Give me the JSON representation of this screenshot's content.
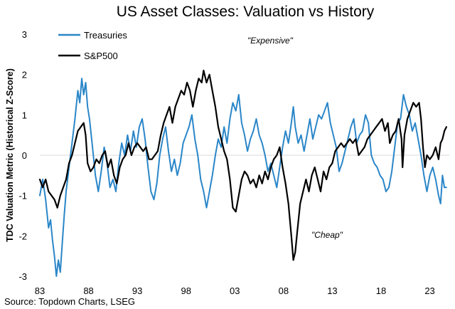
{
  "chart_data": {
    "type": "line",
    "title": "US Asset Classes: Valuation vs History",
    "xlabel": "",
    "ylabel": "TDC Valuation Metric (Historical Z-Score)",
    "ylim": [
      -3,
      3
    ],
    "xlim": [
      1983,
      2025
    ],
    "yticks": [
      -3,
      -2,
      -1,
      0,
      1,
      2,
      3
    ],
    "xticks": [
      {
        "value": 1983,
        "label": "83"
      },
      {
        "value": 1988,
        "label": "88"
      },
      {
        "value": 1993,
        "label": "93"
      },
      {
        "value": 1998,
        "label": "98"
      },
      {
        "value": 2003,
        "label": "03"
      },
      {
        "value": 2008,
        "label": "08"
      },
      {
        "value": 2013,
        "label": "13"
      },
      {
        "value": 2018,
        "label": "18"
      },
      {
        "value": 2023,
        "label": "23"
      }
    ],
    "legend": {
      "position": "top-left"
    },
    "annotations": [
      {
        "text": "\"Expensive\"",
        "x": 2010.0,
        "y": 2.6
      },
      {
        "text": "\"Cheap\"",
        "x": 2011.2,
        "y": -1.95
      }
    ],
    "source": "Source: Topdown Charts, LSEG",
    "series": [
      {
        "name": "Treasuries",
        "color": "#2a86c8",
        "points": [
          [
            1983.0,
            -1.0
          ],
          [
            1983.3,
            -0.6
          ],
          [
            1983.6,
            -1.1
          ],
          [
            1983.9,
            -1.8
          ],
          [
            1984.1,
            -1.6
          ],
          [
            1984.3,
            -2.1
          ],
          [
            1984.5,
            -2.5
          ],
          [
            1984.7,
            -3.0
          ],
          [
            1984.9,
            -2.6
          ],
          [
            1985.1,
            -2.9
          ],
          [
            1985.3,
            -2.2
          ],
          [
            1985.5,
            -1.5
          ],
          [
            1985.7,
            -0.9
          ],
          [
            1986.0,
            -0.3
          ],
          [
            1986.3,
            0.3
          ],
          [
            1986.6,
            0.9
          ],
          [
            1986.9,
            1.6
          ],
          [
            1987.1,
            1.3
          ],
          [
            1987.3,
            1.9
          ],
          [
            1987.5,
            1.5
          ],
          [
            1987.7,
            1.8
          ],
          [
            1987.9,
            1.2
          ],
          [
            1988.1,
            0.9
          ],
          [
            1988.4,
            0.2
          ],
          [
            1988.7,
            -0.5
          ],
          [
            1989.0,
            -0.9
          ],
          [
            1989.3,
            -0.4
          ],
          [
            1989.6,
            0.2
          ],
          [
            1989.9,
            -0.2
          ],
          [
            1990.2,
            -0.8
          ],
          [
            1990.5,
            -0.6
          ],
          [
            1990.8,
            -0.9
          ],
          [
            1991.1,
            -0.2
          ],
          [
            1991.4,
            0.3
          ],
          [
            1991.7,
            0.0
          ],
          [
            1992.0,
            0.5
          ],
          [
            1992.3,
            0.1
          ],
          [
            1992.6,
            0.6
          ],
          [
            1992.9,
            0.2
          ],
          [
            1993.2,
            0.7
          ],
          [
            1993.5,
            0.9
          ],
          [
            1993.8,
            0.4
          ],
          [
            1994.1,
            -0.3
          ],
          [
            1994.4,
            -0.9
          ],
          [
            1994.7,
            -1.1
          ],
          [
            1995.0,
            -0.7
          ],
          [
            1995.3,
            0.0
          ],
          [
            1995.6,
            0.4
          ],
          [
            1995.9,
            0.7
          ],
          [
            1996.2,
            0.1
          ],
          [
            1996.5,
            -0.4
          ],
          [
            1996.8,
            -0.1
          ],
          [
            1997.1,
            -0.5
          ],
          [
            1997.4,
            -0.2
          ],
          [
            1997.7,
            0.3
          ],
          [
            1998.0,
            0.5
          ],
          [
            1998.3,
            0.7
          ],
          [
            1998.6,
            1.0
          ],
          [
            1998.9,
            0.4
          ],
          [
            1999.2,
            0.0
          ],
          [
            1999.5,
            -0.6
          ],
          [
            1999.8,
            -0.9
          ],
          [
            2000.1,
            -1.3
          ],
          [
            2000.4,
            -0.9
          ],
          [
            2000.7,
            -0.5
          ],
          [
            2001.0,
            0.0
          ],
          [
            2001.3,
            0.4
          ],
          [
            2001.6,
            0.2
          ],
          [
            2001.9,
            0.7
          ],
          [
            2002.2,
            0.3
          ],
          [
            2002.5,
            0.9
          ],
          [
            2002.8,
            1.3
          ],
          [
            2003.1,
            1.1
          ],
          [
            2003.4,
            1.5
          ],
          [
            2003.7,
            0.8
          ],
          [
            2004.0,
            0.5
          ],
          [
            2004.3,
            0.1
          ],
          [
            2004.6,
            0.4
          ],
          [
            2004.9,
            0.6
          ],
          [
            2005.2,
            0.9
          ],
          [
            2005.5,
            0.5
          ],
          [
            2005.8,
            0.3
          ],
          [
            2006.1,
            0.0
          ],
          [
            2006.4,
            -0.4
          ],
          [
            2006.7,
            -0.2
          ],
          [
            2007.0,
            -0.5
          ],
          [
            2007.3,
            -0.8
          ],
          [
            2007.6,
            -0.3
          ],
          [
            2007.9,
            0.2
          ],
          [
            2008.2,
            0.6
          ],
          [
            2008.5,
            0.3
          ],
          [
            2008.8,
            0.8
          ],
          [
            2009.0,
            1.2
          ],
          [
            2009.2,
            0.7
          ],
          [
            2009.5,
            0.3
          ],
          [
            2009.8,
            0.5
          ],
          [
            2010.1,
            0.1
          ],
          [
            2010.4,
            0.5
          ],
          [
            2010.7,
            0.9
          ],
          [
            2011.0,
            0.4
          ],
          [
            2011.3,
            0.7
          ],
          [
            2011.6,
            1.0
          ],
          [
            2011.9,
            0.9
          ],
          [
            2012.2,
            1.1
          ],
          [
            2012.5,
            1.3
          ],
          [
            2012.8,
            0.8
          ],
          [
            2013.1,
            0.5
          ],
          [
            2013.4,
            0.2
          ],
          [
            2013.7,
            -0.4
          ],
          [
            2014.0,
            -0.2
          ],
          [
            2014.3,
            0.1
          ],
          [
            2014.6,
            0.4
          ],
          [
            2014.9,
            0.7
          ],
          [
            2015.2,
            0.9
          ],
          [
            2015.5,
            0.3
          ],
          [
            2015.8,
            0.5
          ],
          [
            2016.1,
            0.6
          ],
          [
            2016.4,
            1.0
          ],
          [
            2016.7,
            0.8
          ],
          [
            2017.0,
            0.0
          ],
          [
            2017.3,
            -0.2
          ],
          [
            2017.6,
            -0.3
          ],
          [
            2017.9,
            -0.5
          ],
          [
            2018.2,
            -0.6
          ],
          [
            2018.5,
            -0.9
          ],
          [
            2018.8,
            -0.8
          ],
          [
            2019.1,
            -0.4
          ],
          [
            2019.4,
            0.2
          ],
          [
            2019.7,
            0.8
          ],
          [
            2020.0,
            0.9
          ],
          [
            2020.3,
            1.5
          ],
          [
            2020.6,
            1.2
          ],
          [
            2020.9,
            1.0
          ],
          [
            2021.2,
            0.6
          ],
          [
            2021.5,
            0.8
          ],
          [
            2021.8,
            0.4
          ],
          [
            2022.1,
            0.0
          ],
          [
            2022.4,
            -0.5
          ],
          [
            2022.7,
            -0.9
          ],
          [
            2023.0,
            -0.5
          ],
          [
            2023.3,
            -0.3
          ],
          [
            2023.6,
            -0.6
          ],
          [
            2023.9,
            -1.0
          ],
          [
            2024.1,
            -1.2
          ],
          [
            2024.3,
            -0.5
          ],
          [
            2024.5,
            -0.8
          ],
          [
            2024.7,
            -0.8
          ]
        ]
      },
      {
        "name": "S&P500",
        "color": "#000000",
        "points": [
          [
            1983.0,
            -0.6
          ],
          [
            1983.3,
            -0.8
          ],
          [
            1983.6,
            -0.6
          ],
          [
            1983.9,
            -0.9
          ],
          [
            1984.2,
            -1.0
          ],
          [
            1984.5,
            -1.1
          ],
          [
            1984.8,
            -1.3
          ],
          [
            1985.1,
            -1.0
          ],
          [
            1985.4,
            -0.8
          ],
          [
            1985.7,
            -0.6
          ],
          [
            1986.0,
            -0.2
          ],
          [
            1986.3,
            0.0
          ],
          [
            1986.6,
            0.3
          ],
          [
            1986.9,
            0.6
          ],
          [
            1987.2,
            0.7
          ],
          [
            1987.5,
            0.8
          ],
          [
            1987.7,
            0.5
          ],
          [
            1987.9,
            -0.2
          ],
          [
            1988.2,
            -0.4
          ],
          [
            1988.5,
            -0.3
          ],
          [
            1988.8,
            -0.1
          ],
          [
            1989.1,
            -0.2
          ],
          [
            1989.4,
            0.0
          ],
          [
            1989.7,
            0.1
          ],
          [
            1990.0,
            -0.3
          ],
          [
            1990.3,
            -0.1
          ],
          [
            1990.6,
            -0.5
          ],
          [
            1990.9,
            -0.7
          ],
          [
            1991.2,
            -0.3
          ],
          [
            1991.5,
            -0.1
          ],
          [
            1991.8,
            0.0
          ],
          [
            1992.1,
            0.3
          ],
          [
            1992.4,
            0.0
          ],
          [
            1992.7,
            0.2
          ],
          [
            1993.0,
            0.3
          ],
          [
            1993.3,
            0.2
          ],
          [
            1993.6,
            0.1
          ],
          [
            1993.9,
            0.2
          ],
          [
            1994.2,
            -0.1
          ],
          [
            1994.5,
            -0.1
          ],
          [
            1994.8,
            0.0
          ],
          [
            1995.1,
            0.1
          ],
          [
            1995.4,
            0.5
          ],
          [
            1995.7,
            0.8
          ],
          [
            1996.0,
            1.0
          ],
          [
            1996.3,
            1.2
          ],
          [
            1996.6,
            0.8
          ],
          [
            1996.9,
            1.2
          ],
          [
            1997.2,
            1.4
          ],
          [
            1997.5,
            1.6
          ],
          [
            1997.8,
            1.5
          ],
          [
            1998.1,
            1.8
          ],
          [
            1998.4,
            1.6
          ],
          [
            1998.7,
            1.2
          ],
          [
            1999.0,
            1.6
          ],
          [
            1999.3,
            1.9
          ],
          [
            1999.6,
            1.8
          ],
          [
            1999.8,
            2.1
          ],
          [
            2000.1,
            1.8
          ],
          [
            2000.4,
            2.0
          ],
          [
            2000.7,
            1.6
          ],
          [
            2001.0,
            1.2
          ],
          [
            2001.3,
            0.7
          ],
          [
            2001.6,
            0.4
          ],
          [
            2001.9,
            0.1
          ],
          [
            2002.2,
            -0.1
          ],
          [
            2002.5,
            -0.6
          ],
          [
            2002.8,
            -1.3
          ],
          [
            2003.1,
            -1.4
          ],
          [
            2003.4,
            -1.0
          ],
          [
            2003.7,
            -0.6
          ],
          [
            2004.0,
            -0.4
          ],
          [
            2004.3,
            -0.5
          ],
          [
            2004.6,
            -0.7
          ],
          [
            2004.9,
            -0.6
          ],
          [
            2005.2,
            -0.8
          ],
          [
            2005.5,
            -0.5
          ],
          [
            2005.8,
            -0.7
          ],
          [
            2006.1,
            -0.4
          ],
          [
            2006.4,
            -0.6
          ],
          [
            2006.7,
            -0.3
          ],
          [
            2007.0,
            -0.1
          ],
          [
            2007.3,
            0.0
          ],
          [
            2007.6,
            0.2
          ],
          [
            2007.9,
            -0.3
          ],
          [
            2008.2,
            -0.7
          ],
          [
            2008.5,
            -1.2
          ],
          [
            2008.8,
            -2.0
          ],
          [
            2009.0,
            -2.6
          ],
          [
            2009.2,
            -2.4
          ],
          [
            2009.4,
            -1.9
          ],
          [
            2009.7,
            -1.2
          ],
          [
            2010.0,
            -0.9
          ],
          [
            2010.3,
            -0.6
          ],
          [
            2010.6,
            -0.9
          ],
          [
            2010.9,
            -0.5
          ],
          [
            2011.2,
            -0.3
          ],
          [
            2011.5,
            -0.6
          ],
          [
            2011.8,
            -0.9
          ],
          [
            2012.1,
            -0.4
          ],
          [
            2012.4,
            -0.6
          ],
          [
            2012.7,
            -0.3
          ],
          [
            2013.0,
            -0.2
          ],
          [
            2013.3,
            0.1
          ],
          [
            2013.6,
            0.2
          ],
          [
            2013.9,
            0.3
          ],
          [
            2014.2,
            0.2
          ],
          [
            2014.5,
            0.3
          ],
          [
            2014.8,
            0.4
          ],
          [
            2015.1,
            0.3
          ],
          [
            2015.4,
            0.4
          ],
          [
            2015.7,
            0.0
          ],
          [
            2016.0,
            0.1
          ],
          [
            2016.3,
            0.2
          ],
          [
            2016.6,
            0.4
          ],
          [
            2016.9,
            0.5
          ],
          [
            2017.2,
            0.6
          ],
          [
            2017.5,
            0.7
          ],
          [
            2017.8,
            0.8
          ],
          [
            2018.1,
            0.9
          ],
          [
            2018.4,
            0.6
          ],
          [
            2018.7,
            0.8
          ],
          [
            2018.9,
            0.3
          ],
          [
            2019.2,
            0.5
          ],
          [
            2019.5,
            0.6
          ],
          [
            2019.8,
            0.9
          ],
          [
            2020.1,
            0.4
          ],
          [
            2020.2,
            -0.3
          ],
          [
            2020.4,
            0.5
          ],
          [
            2020.7,
            0.9
          ],
          [
            2021.0,
            1.1
          ],
          [
            2021.3,
            1.3
          ],
          [
            2021.6,
            1.2
          ],
          [
            2021.9,
            1.3
          ],
          [
            2022.1,
            0.9
          ],
          [
            2022.3,
            0.2
          ],
          [
            2022.5,
            -0.3
          ],
          [
            2022.7,
            0.0
          ],
          [
            2023.0,
            -0.1
          ],
          [
            2023.3,
            0.0
          ],
          [
            2023.6,
            0.2
          ],
          [
            2023.9,
            -0.1
          ],
          [
            2024.1,
            0.3
          ],
          [
            2024.3,
            0.4
          ],
          [
            2024.5,
            0.6
          ],
          [
            2024.7,
            0.7
          ]
        ]
      }
    ]
  }
}
